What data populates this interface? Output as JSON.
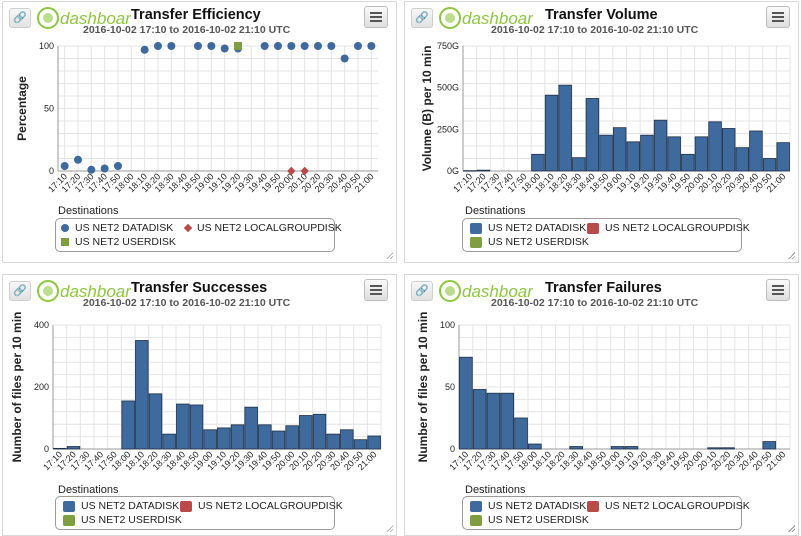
{
  "colors": {
    "datadisk": "#3f6a9e",
    "localgroupdisk": "#b84a4a",
    "userdisk": "#7e9e3f",
    "logo_green": "#8dc63f"
  },
  "logo_text": "dashboard",
  "subtitle": "2016-10-02 17:10 to 2016-10-02 21:10 UTC",
  "legend": {
    "title": "Destinations",
    "datadisk": "US NET2 DATADISK",
    "localgroupdisk": "US NET2 LOCALGROUPDISK",
    "userdisk": "US NET2 USERDISK"
  },
  "time_labels": [
    "17:10",
    "17:20",
    "17:30",
    "17:40",
    "17:50",
    "18:00",
    "18:10",
    "18:20",
    "18:30",
    "18:40",
    "18:50",
    "19:00",
    "19:10",
    "19:20",
    "19:30",
    "19:40",
    "19:50",
    "20:00",
    "20:10",
    "20:20",
    "20:30",
    "20:40",
    "20:50",
    "21:00"
  ],
  "chart_data": [
    {
      "type": "scatter",
      "title": "Transfer Efficiency",
      "subtitle": "2016-10-02 17:10 to 2016-10-02 21:10 UTC",
      "ylabel": "Percentage",
      "ylim": [
        0,
        100
      ],
      "yticks": [
        0,
        50,
        100
      ],
      "ytick_labels": [
        "0",
        "50",
        "100"
      ],
      "series": [
        {
          "name": "US NET2 DATADISK",
          "values": [
            4,
            9,
            1,
            2,
            4,
            null,
            97,
            100,
            100,
            null,
            100,
            100,
            98,
            98,
            null,
            100,
            100,
            100,
            100,
            100,
            100,
            90,
            100,
            100
          ]
        },
        {
          "name": "US NET2 LOCALGROUPDISK",
          "values": [
            null,
            null,
            null,
            null,
            null,
            null,
            null,
            null,
            null,
            null,
            null,
            null,
            null,
            null,
            null,
            null,
            null,
            0,
            0,
            null,
            null,
            null,
            null,
            null
          ]
        },
        {
          "name": "US NET2 USERDISK",
          "values": [
            null,
            null,
            null,
            null,
            null,
            null,
            null,
            null,
            null,
            null,
            null,
            null,
            null,
            100,
            null,
            null,
            null,
            null,
            null,
            null,
            null,
            null,
            null,
            null
          ]
        }
      ]
    },
    {
      "type": "bar",
      "title": "Transfer Volume",
      "subtitle": "2016-10-02 17:10 to 2016-10-02 21:10 UTC",
      "ylabel": "Volume (B) per 10 min",
      "ylim": [
        0,
        750
      ],
      "yticks": [
        0,
        250,
        500,
        750
      ],
      "ytick_labels": [
        "0G",
        "250G",
        "500G",
        "750G"
      ],
      "series": [
        {
          "name": "US NET2 DATADISK",
          "values": [
            2,
            5,
            0,
            0,
            0,
            100,
            455,
            515,
            80,
            435,
            215,
            260,
            175,
            215,
            305,
            205,
            100,
            205,
            295,
            255,
            140,
            240,
            75,
            170
          ]
        }
      ]
    },
    {
      "type": "bar",
      "title": "Transfer Successes",
      "subtitle": "2016-10-02 17:10 to 2016-10-02 21:10 UTC",
      "ylabel": "Number of files per 10 min",
      "ylim": [
        0,
        400
      ],
      "yticks": [
        0,
        200,
        400
      ],
      "ytick_labels": [
        "0",
        "200",
        "400"
      ],
      "series": [
        {
          "name": "US NET2 DATADISK",
          "values": [
            2,
            8,
            0,
            0,
            0,
            155,
            350,
            178,
            48,
            145,
            142,
            62,
            68,
            78,
            135,
            78,
            58,
            75,
            108,
            112,
            48,
            62,
            30,
            42
          ]
        }
      ]
    },
    {
      "type": "bar",
      "title": "Transfer Failures",
      "subtitle": "2016-10-02 17:10 to 2016-10-02 21:10 UTC",
      "ylabel": "Number of files per 10 min",
      "ylim": [
        0,
        100
      ],
      "yticks": [
        0,
        50,
        100
      ],
      "ytick_labels": [
        "0",
        "50",
        "100"
      ],
      "series": [
        {
          "name": "US NET2 DATADISK",
          "values": [
            74,
            48,
            45,
            45,
            25,
            4,
            0,
            0,
            2,
            0,
            0,
            2,
            2,
            0,
            0,
            0,
            0,
            0,
            1,
            1,
            0,
            0,
            6,
            0
          ]
        }
      ]
    }
  ]
}
